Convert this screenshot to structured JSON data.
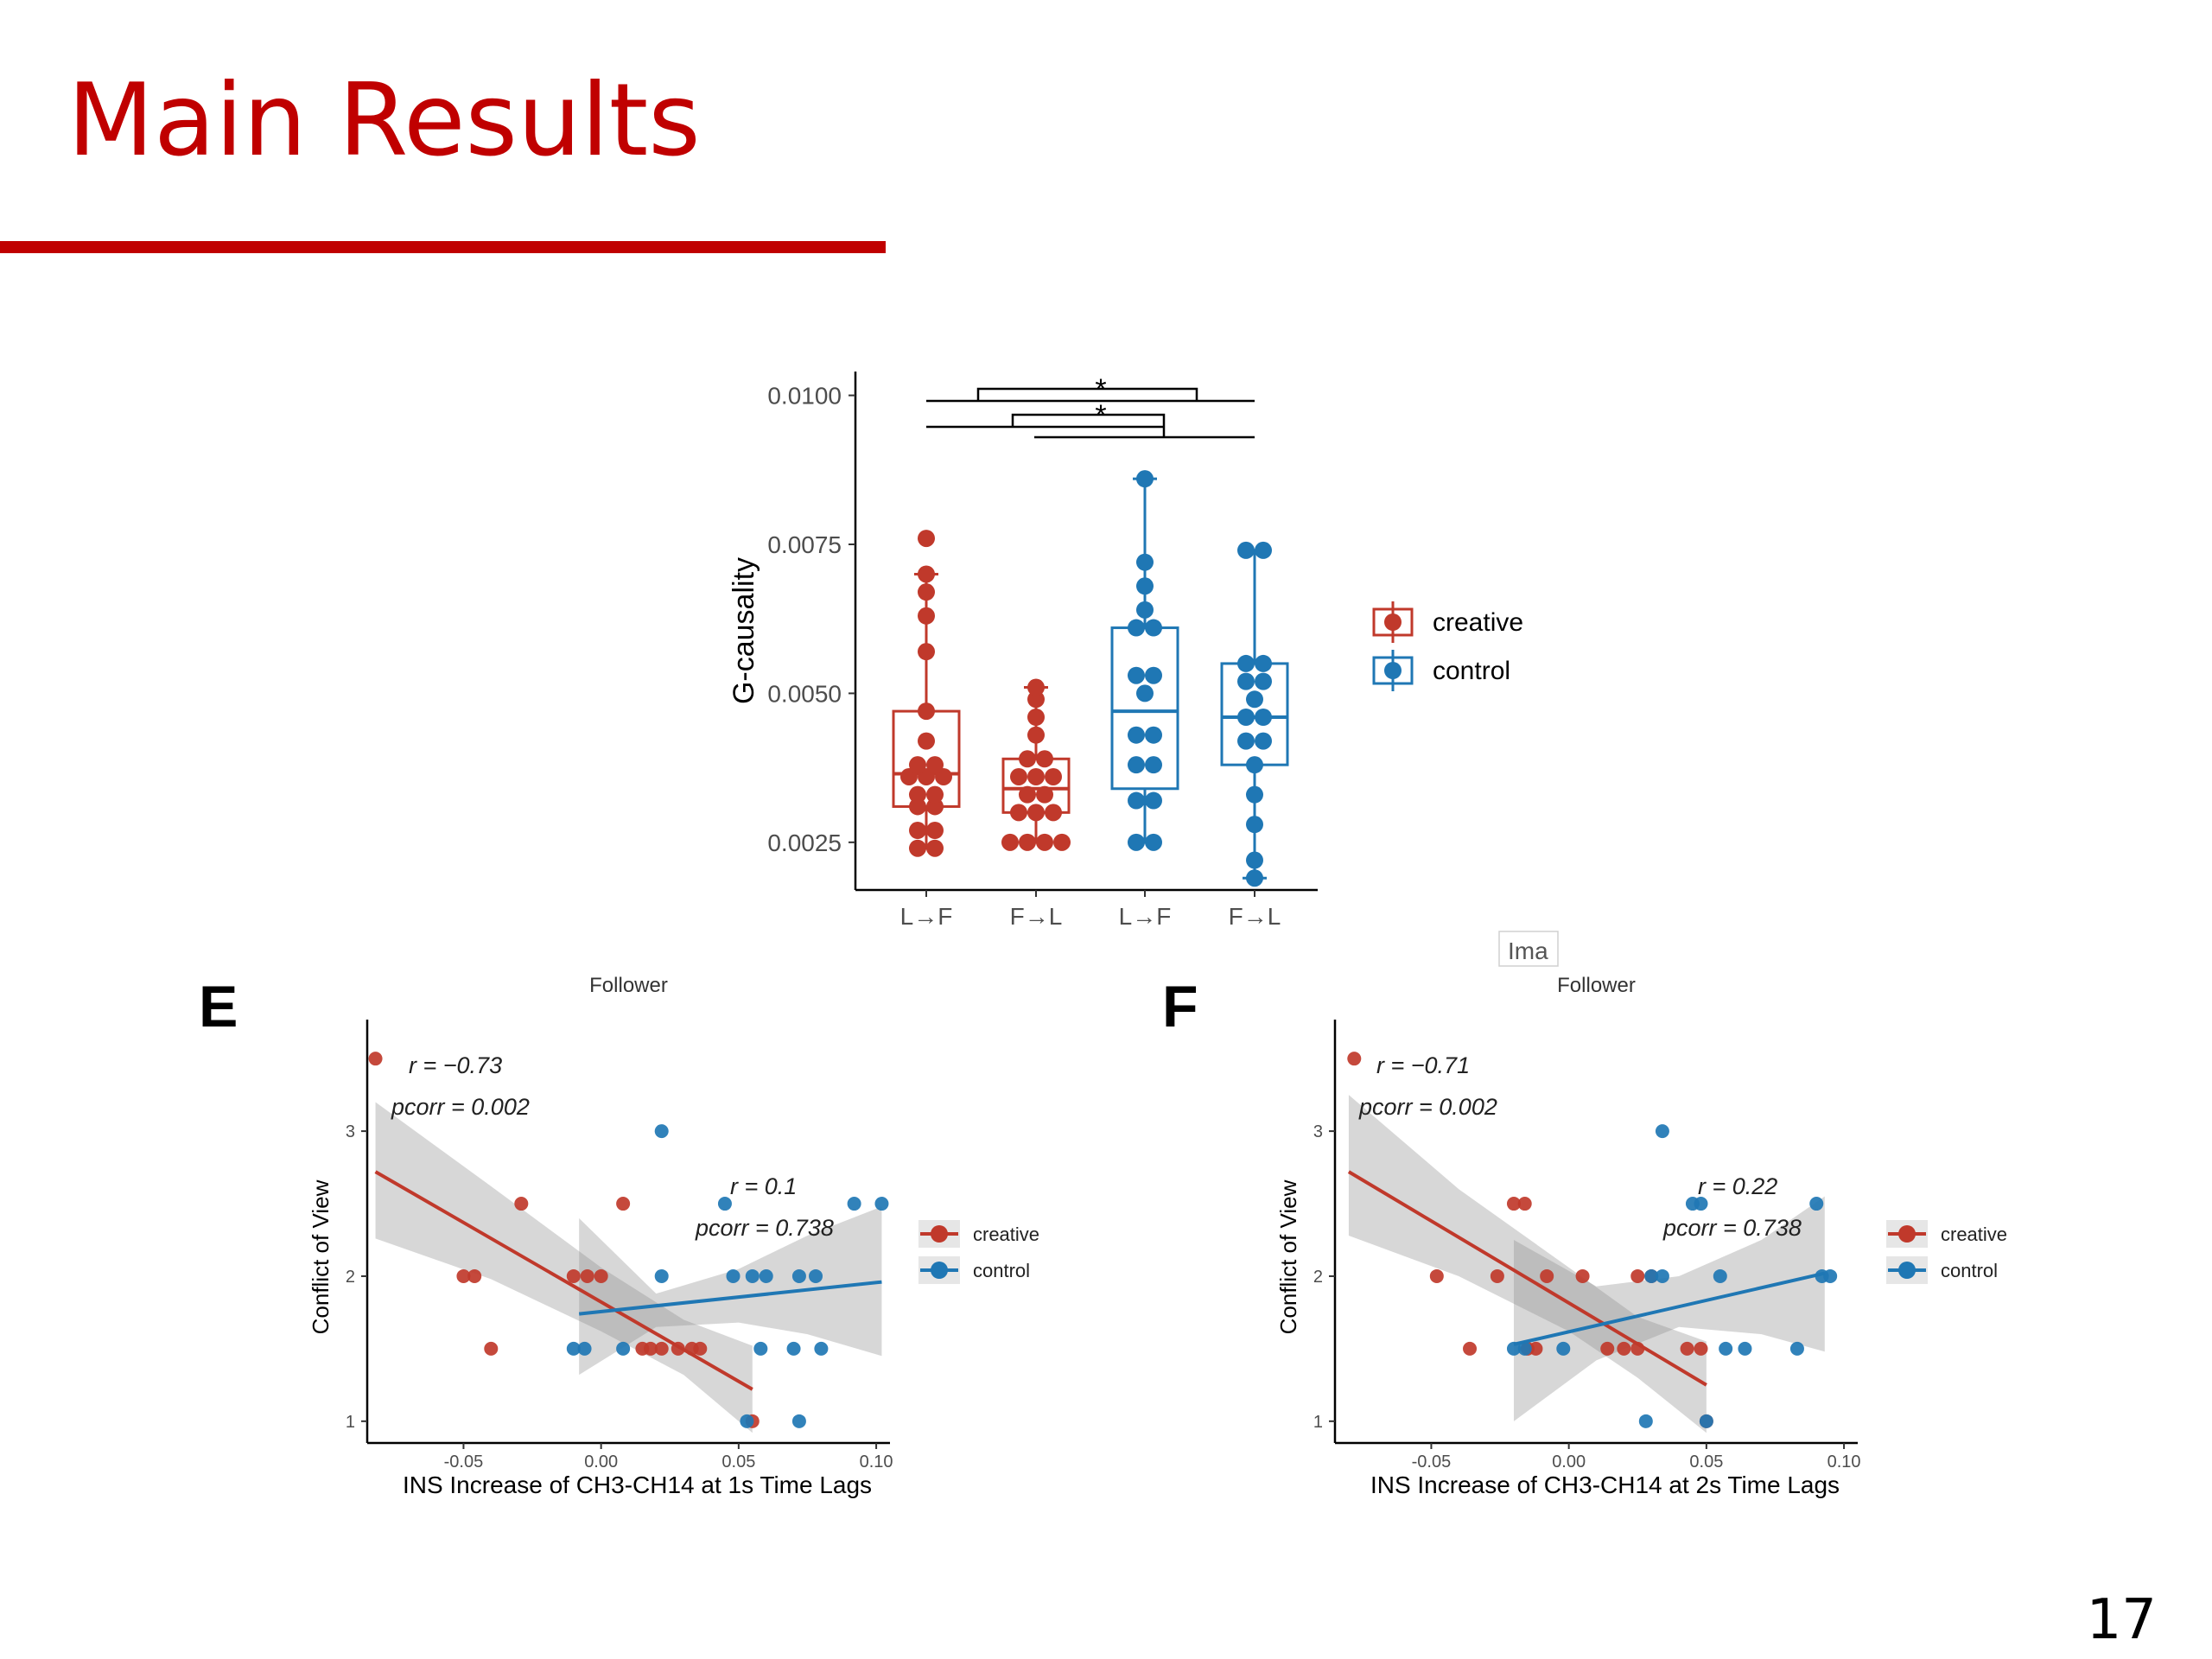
{
  "slide": {
    "title": "Main Results",
    "page_number": "17",
    "stray_label": "Ima",
    "colors": {
      "title": "#c00000",
      "rule": "#c00000"
    }
  },
  "chart_data": [
    {
      "id": "top",
      "type": "box",
      "title": "",
      "xlabel": "",
      "ylabel": "G-causality",
      "ylim": [
        0.0017,
        0.0104
      ],
      "yticks": [
        0.0025,
        0.005,
        0.0075,
        0.01
      ],
      "ytick_labels": [
        "0.0025",
        "0.0050",
        "0.0075",
        "0.0100"
      ],
      "categories": [
        "L→F",
        "F→L",
        "L→F",
        "F→L"
      ],
      "groups": [
        {
          "category": "L→F",
          "series": "creative",
          "color": "#c0392b",
          "box": {
            "lower_whisker": 0.0024,
            "q1": 0.0031,
            "median": 0.00365,
            "q3": 0.0047,
            "upper_whisker": 0.007
          },
          "points": [
            0.0024,
            0.0024,
            0.0027,
            0.0027,
            0.0031,
            0.0031,
            0.0033,
            0.0033,
            0.0036,
            0.0036,
            0.0036,
            0.0038,
            0.0038,
            0.0042,
            0.0047,
            0.0057,
            0.0063,
            0.0067,
            0.007,
            0.0076
          ]
        },
        {
          "category": "F→L",
          "series": "creative",
          "color": "#c0392b",
          "box": {
            "lower_whisker": 0.0025,
            "q1": 0.003,
            "median": 0.0034,
            "q3": 0.0039,
            "upper_whisker": 0.0051
          },
          "points": [
            0.0025,
            0.0025,
            0.0025,
            0.0025,
            0.003,
            0.003,
            0.003,
            0.0033,
            0.0033,
            0.0036,
            0.0036,
            0.0036,
            0.0039,
            0.0039,
            0.0043,
            0.0046,
            0.0049,
            0.0051
          ]
        },
        {
          "category": "L→F",
          "series": "control",
          "color": "#1f77b4",
          "box": {
            "lower_whisker": 0.0025,
            "q1": 0.0034,
            "median": 0.0047,
            "q3": 0.0061,
            "upper_whisker": 0.0086
          },
          "points": [
            0.0025,
            0.0025,
            0.0032,
            0.0032,
            0.0038,
            0.0038,
            0.0043,
            0.0043,
            0.005,
            0.0053,
            0.0053,
            0.0061,
            0.0061,
            0.0064,
            0.0068,
            0.0072,
            0.0086
          ]
        },
        {
          "category": "F→L",
          "series": "control",
          "color": "#1f77b4",
          "box": {
            "lower_whisker": 0.0019,
            "q1": 0.0038,
            "median": 0.0046,
            "q3": 0.0055,
            "upper_whisker": 0.0074
          },
          "points": [
            0.0019,
            0.0022,
            0.0028,
            0.0033,
            0.0038,
            0.0042,
            0.0042,
            0.0046,
            0.0046,
            0.0049,
            0.0052,
            0.0052,
            0.0055,
            0.0055,
            0.0074,
            0.0074
          ]
        }
      ],
      "legend": {
        "position": "right",
        "entries": [
          {
            "label": "creative",
            "color": "#c0392b"
          },
          {
            "label": "control",
            "color": "#1f77b4"
          }
        ]
      },
      "annotations": [
        "*",
        "*"
      ]
    },
    {
      "id": "E",
      "panel_label": "E",
      "type": "scatter",
      "title": "Follower",
      "xlabel": "INS Increase of CH3-CH14 at 1s Time Lags",
      "ylabel": "Conflict of View",
      "xlim": [
        -0.085,
        0.105
      ],
      "ylim": [
        0.85,
        3.65
      ],
      "xticks": [
        -0.05,
        0,
        0.05,
        0.1
      ],
      "xtick_labels": [
        "-0.05",
        "0.00",
        "0.05",
        "0.10"
      ],
      "yticks": [
        1,
        2,
        3
      ],
      "ytick_labels": [
        "1",
        "2",
        "3"
      ],
      "series": [
        {
          "name": "creative",
          "color": "#c0392b",
          "fit": {
            "x": [
              -0.082,
              0.055
            ],
            "y": [
              2.72,
              1.22
            ]
          },
          "band": {
            "x": [
              -0.082,
              -0.04,
              0,
              0.03,
              0.055
            ],
            "lower": [
              2.26,
              1.98,
              1.62,
              1.32,
              0.92
            ],
            "upper": [
              3.2,
              2.62,
              2.06,
              1.7,
              1.52
            ]
          },
          "stats": [
            "r = −0.73",
            "pcorr = 0.002"
          ],
          "points": [
            [
              -0.082,
              3.5
            ],
            [
              -0.05,
              2.0
            ],
            [
              -0.046,
              2.0
            ],
            [
              -0.04,
              1.5
            ],
            [
              -0.029,
              2.5
            ],
            [
              -0.01,
              2.0
            ],
            [
              -0.005,
              2.0
            ],
            [
              0.0,
              2.0
            ],
            [
              0.008,
              2.5
            ],
            [
              0.015,
              1.5
            ],
            [
              0.018,
              1.5
            ],
            [
              0.022,
              1.5
            ],
            [
              0.028,
              1.5
            ],
            [
              0.033,
              1.5
            ],
            [
              0.036,
              1.5
            ],
            [
              0.055,
              1.0
            ]
          ]
        },
        {
          "name": "control",
          "color": "#1f77b4",
          "fit": {
            "x": [
              -0.008,
              0.102
            ],
            "y": [
              1.74,
              1.96
            ]
          },
          "band": {
            "x": [
              -0.008,
              0.02,
              0.05,
              0.075,
              0.102
            ],
            "lower": [
              1.32,
              1.65,
              1.68,
              1.6,
              1.45
            ],
            "upper": [
              2.4,
              1.88,
              2.05,
              2.28,
              2.48
            ]
          },
          "stats": [
            "r = 0.1",
            "pcorr = 0.738"
          ],
          "points": [
            [
              -0.01,
              1.5
            ],
            [
              -0.006,
              1.5
            ],
            [
              0.008,
              1.5
            ],
            [
              0.022,
              3.0
            ],
            [
              0.022,
              2.0
            ],
            [
              0.045,
              2.5
            ],
            [
              0.048,
              2.0
            ],
            [
              0.055,
              2.0
            ],
            [
              0.053,
              1.0
            ],
            [
              0.058,
              1.5
            ],
            [
              0.06,
              2.0
            ],
            [
              0.07,
              1.5
            ],
            [
              0.072,
              2.0
            ],
            [
              0.072,
              1.0
            ],
            [
              0.078,
              2.0
            ],
            [
              0.08,
              1.5
            ],
            [
              0.092,
              2.5
            ],
            [
              0.102,
              2.5
            ]
          ]
        }
      ],
      "legend": {
        "position": "right",
        "entries": [
          {
            "label": "creative",
            "color": "#c0392b"
          },
          {
            "label": "control",
            "color": "#1f77b4"
          }
        ]
      }
    },
    {
      "id": "F",
      "panel_label": "F",
      "type": "scatter",
      "title": "Follower",
      "xlabel": "INS Increase of CH3-CH14 at 2s Time Lags",
      "ylabel": "Conflict of View",
      "xlim": [
        -0.085,
        0.105
      ],
      "ylim": [
        0.85,
        3.65
      ],
      "xticks": [
        -0.05,
        0,
        0.05,
        0.1
      ],
      "xtick_labels": [
        "-0.05",
        "0.00",
        "0.05",
        "0.10"
      ],
      "yticks": [
        1,
        2,
        3
      ],
      "ytick_labels": [
        "1",
        "2",
        "3"
      ],
      "series": [
        {
          "name": "creative",
          "color": "#c0392b",
          "fit": {
            "x": [
              -0.08,
              0.05
            ],
            "y": [
              2.72,
              1.25
            ]
          },
          "band": {
            "x": [
              -0.08,
              -0.04,
              0,
              0.025,
              0.05
            ],
            "lower": [
              2.28,
              2.0,
              1.62,
              1.3,
              0.92
            ],
            "upper": [
              3.25,
              2.6,
              2.06,
              1.72,
              1.55
            ]
          },
          "stats": [
            "r = −0.71",
            "pcorr = 0.002"
          ],
          "points": [
            [
              -0.078,
              3.5
            ],
            [
              -0.048,
              2.0
            ],
            [
              -0.036,
              1.5
            ],
            [
              -0.026,
              2.0
            ],
            [
              -0.02,
              2.5
            ],
            [
              -0.016,
              2.5
            ],
            [
              -0.015,
              1.5
            ],
            [
              -0.012,
              1.5
            ],
            [
              -0.008,
              2.0
            ],
            [
              0.005,
              2.0
            ],
            [
              0.014,
              1.5
            ],
            [
              0.02,
              1.5
            ],
            [
              0.025,
              1.5
            ],
            [
              0.025,
              2.0
            ],
            [
              0.03,
              2.0
            ],
            [
              0.043,
              1.5
            ],
            [
              0.048,
              1.5
            ],
            [
              0.05,
              1.0
            ]
          ]
        },
        {
          "name": "control",
          "color": "#1f77b4",
          "fit": {
            "x": [
              -0.02,
              0.093
            ],
            "y": [
              1.53,
              2.02
            ]
          },
          "band": {
            "x": [
              -0.02,
              0.01,
              0.04,
              0.07,
              0.093
            ],
            "lower": [
              1.0,
              1.42,
              1.65,
              1.6,
              1.48
            ],
            "upper": [
              2.25,
              1.93,
              2.0,
              2.25,
              2.55
            ]
          },
          "stats": [
            "r = 0.22",
            "pcorr = 0.738"
          ],
          "points": [
            [
              -0.02,
              1.5
            ],
            [
              -0.016,
              1.5
            ],
            [
              -0.002,
              1.5
            ],
            [
              0.028,
              1.0
            ],
            [
              0.03,
              2.0
            ],
            [
              0.034,
              2.0
            ],
            [
              0.034,
              3.0
            ],
            [
              0.045,
              2.5
            ],
            [
              0.048,
              2.5
            ],
            [
              0.05,
              1.0
            ],
            [
              0.055,
              2.0
            ],
            [
              0.057,
              1.5
            ],
            [
              0.064,
              1.5
            ],
            [
              0.083,
              1.5
            ],
            [
              0.09,
              2.5
            ],
            [
              0.092,
              2.0
            ],
            [
              0.095,
              2.0
            ]
          ]
        }
      ],
      "legend": {
        "position": "right",
        "entries": [
          {
            "label": "creative",
            "color": "#c0392b"
          },
          {
            "label": "control",
            "color": "#1f77b4"
          }
        ]
      }
    }
  ]
}
